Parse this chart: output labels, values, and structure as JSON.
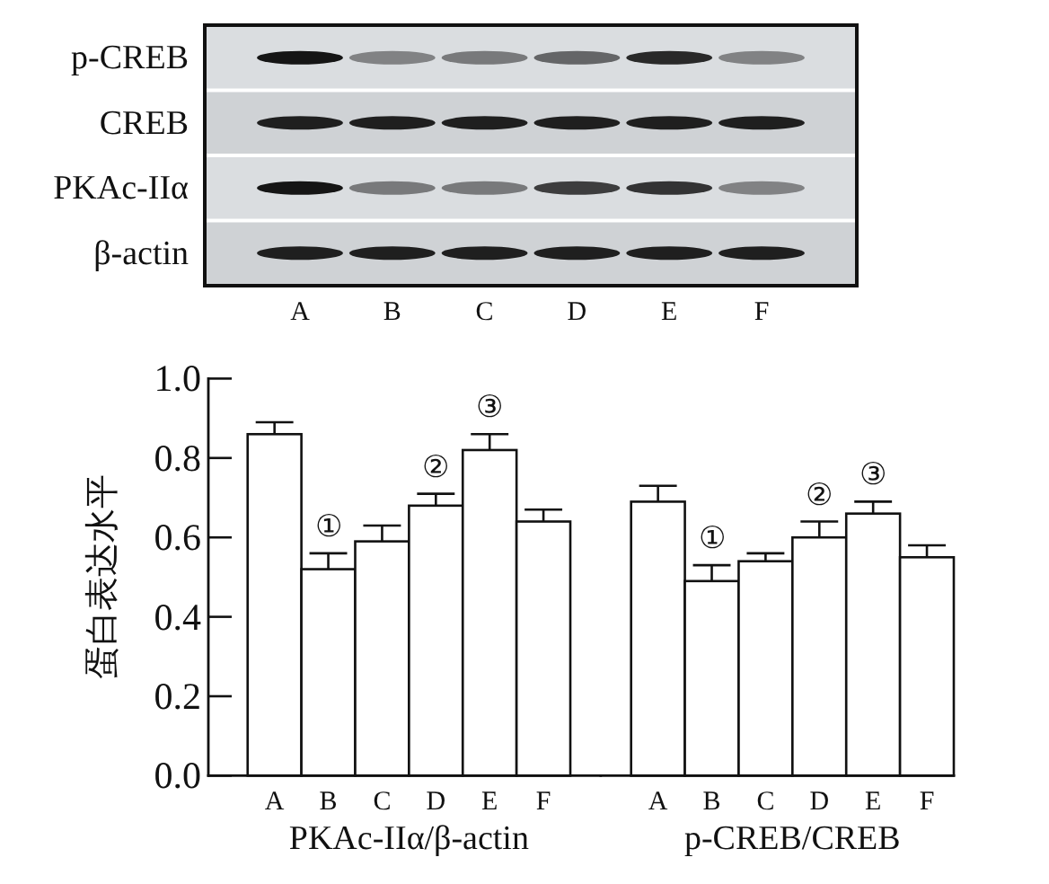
{
  "chart_data": [
    {
      "type": "other",
      "categories": [
        "A",
        "B",
        "C",
        "D",
        "E",
        "F"
      ],
      "annotations": [
        "p-CREB",
        "CREB",
        "PKAc-IIα",
        "β-actin"
      ]
    },
    {
      "type": "bar",
      "categories": [
        "A",
        "B",
        "C",
        "D",
        "E",
        "F"
      ],
      "values": [
        0.86,
        0.52,
        0.59,
        0.68,
        0.82,
        0.64
      ],
      "errors": [
        [
          0.86,
          0.89
        ],
        [
          0.52,
          0.56
        ],
        [
          0.59,
          0.63
        ],
        [
          0.68,
          0.71
        ],
        [
          0.82,
          0.86
        ],
        [
          0.64,
          0.67
        ]
      ],
      "color": "#ffffff",
      "xlabel": "PKAc-IIα/β-actin",
      "ylabel": "蛋白表达水平",
      "ylim": [
        0,
        1
      ],
      "yticks": [
        {
          "value": 0,
          "label": "0.0"
        },
        0.2,
        0.4,
        0.6,
        0.8,
        {
          "value": 1,
          "label": "1.0"
        }
      ],
      "annotations": [
        {
          "text": "①",
          "x": "B",
          "y": 0.52
        },
        {
          "text": "②",
          "x": "D",
          "y": 0.68
        },
        {
          "text": "③",
          "x": "E",
          "y": 0.82
        }
      ]
    },
    {
      "type": "bar",
      "categories": [
        "A",
        "B",
        "C",
        "D",
        "E",
        "F"
      ],
      "values": [
        0.69,
        0.49,
        0.54,
        0.6,
        0.66,
        0.55
      ],
      "errors": [
        [
          0.69,
          0.73
        ],
        [
          0.49,
          0.53
        ],
        [
          0.54,
          0.56
        ],
        [
          0.6,
          0.64
        ],
        [
          0.66,
          0.69
        ],
        [
          0.55,
          0.58
        ]
      ],
      "color": "#ffffff",
      "xlabel": "p-CREB/CREB",
      "ylim": [
        0,
        1
      ],
      "tick_labels": "x",
      "annotations": [
        {
          "text": "①",
          "x": "B",
          "y": 0.49
        },
        {
          "text": "②",
          "x": "D",
          "y": 0.6
        },
        {
          "text": "③",
          "x": "E",
          "y": 0.66
        }
      ]
    }
  ]
}
